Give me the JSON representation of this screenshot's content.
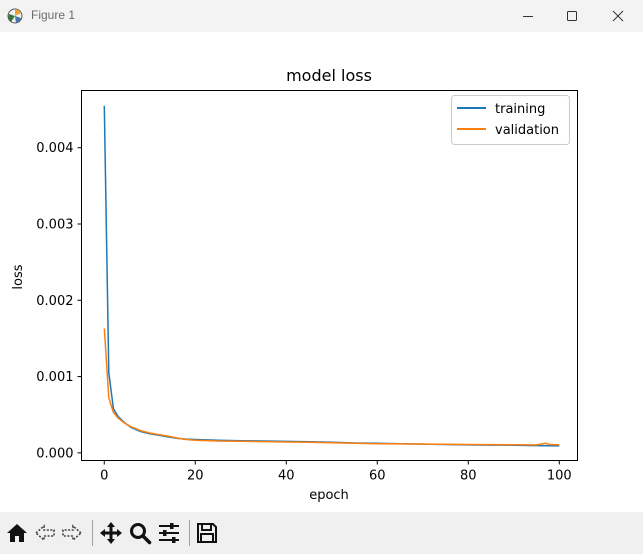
{
  "window": {
    "title": "Figure 1",
    "icons": [
      "matplotlib-icon",
      "minimize-icon",
      "maximize-icon",
      "close-icon"
    ]
  },
  "toolbar": {
    "icons": [
      "home-icon",
      "back-icon",
      "forward-icon",
      "pan-icon",
      "zoom-icon",
      "configure-subplots-icon",
      "save-icon"
    ]
  },
  "chart_data": {
    "type": "line",
    "title": "model loss",
    "xlabel": "epoch",
    "ylabel": "loss",
    "xlim": [
      -5,
      104
    ],
    "ylim": [
      -0.0001,
      0.00475
    ],
    "xticks": [
      0,
      20,
      40,
      60,
      80,
      100
    ],
    "xtick_labels": [
      "0",
      "20",
      "40",
      "60",
      "80",
      "100"
    ],
    "yticks": [
      0,
      0.001,
      0.002,
      0.003,
      0.004
    ],
    "ytick_labels": [
      "0.000",
      "0.001",
      "0.002",
      "0.003",
      "0.004"
    ],
    "grid": false,
    "legend": "top-right",
    "series": [
      {
        "name": "training",
        "color": "#1f77b4",
        "x": [
          0,
          1,
          2,
          3,
          4,
          5,
          6,
          8,
          10,
          12,
          14,
          16,
          18,
          20,
          25,
          30,
          35,
          40,
          45,
          50,
          55,
          60,
          65,
          70,
          75,
          80,
          85,
          90,
          95,
          100
        ],
        "y": [
          0.00455,
          0.00105,
          0.00058,
          0.00048,
          0.00042,
          0.00037,
          0.00033,
          0.00028,
          0.00025,
          0.00023,
          0.00021,
          0.00019,
          0.00018,
          0.000175,
          0.000165,
          0.00016,
          0.000155,
          0.00015,
          0.000145,
          0.00014,
          0.00013,
          0.000125,
          0.00012,
          0.000115,
          0.00011,
          0.000105,
          0.000102,
          0.0001,
          9.5e-05,
          9.2e-05
        ]
      },
      {
        "name": "validation",
        "color": "#ff7f0e",
        "x": [
          0,
          1,
          2,
          3,
          4,
          5,
          6,
          8,
          10,
          12,
          14,
          16,
          18,
          20,
          25,
          30,
          35,
          40,
          45,
          50,
          55,
          60,
          65,
          70,
          75,
          80,
          85,
          90,
          95,
          97,
          98,
          100
        ],
        "y": [
          0.00163,
          0.00072,
          0.00053,
          0.00046,
          0.00041,
          0.00037,
          0.00034,
          0.00029,
          0.00026,
          0.00024,
          0.00022,
          0.000195,
          0.000175,
          0.000165,
          0.000155,
          0.000152,
          0.000148,
          0.000142,
          0.000138,
          0.000132,
          0.000126,
          0.00012,
          0.000118,
          0.000115,
          0.000112,
          0.00011,
          0.000108,
          0.000106,
          0.000105,
          0.000125,
          0.00011,
          0.000104
        ]
      }
    ]
  }
}
